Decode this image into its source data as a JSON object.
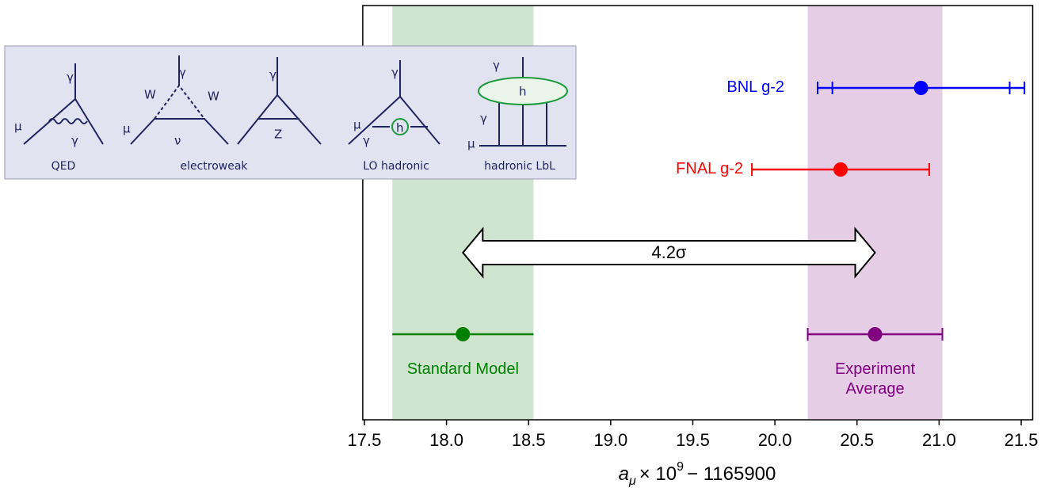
{
  "chart_data": {
    "type": "errorbar",
    "x_label": {
      "symbol": "a",
      "subscript": "μ",
      "factor": "× 10",
      "exponent": "9",
      "offset": "− 1165900"
    },
    "xlim": [
      17.49,
      21.57
    ],
    "xticks": [
      {
        "value": 17.5,
        "label": "17.5"
      },
      {
        "value": 18,
        "label": "18.0"
      },
      {
        "value": 18.5,
        "label": "18.5"
      },
      {
        "value": 19,
        "label": "19.0"
      },
      {
        "value": 19.5,
        "label": "19.5"
      },
      {
        "value": 20,
        "label": "20.0"
      },
      {
        "value": 20.5,
        "label": "20.5"
      },
      {
        "value": 21,
        "label": "21.0"
      },
      {
        "value": 21.5,
        "label": "21.5"
      }
    ],
    "series": [
      {
        "name": "BNL g-2",
        "color": "#0000ff",
        "value": 20.89,
        "error": 0.63,
        "stat_error": 0.54,
        "caps": true,
        "band": false
      },
      {
        "name": "FNAL g-2",
        "color": "#ff0000",
        "value": 20.4,
        "error": 0.54,
        "caps": true,
        "band": false
      },
      {
        "name": "Standard Model",
        "color": "#008000",
        "value": 18.1,
        "error": 0.43,
        "caps": false,
        "band": true,
        "band_color": "#cfe4cf"
      },
      {
        "name": "Experiment Average",
        "color": "#800080",
        "value": 20.61,
        "error": 0.41,
        "caps": true,
        "band": true,
        "band_color": "#e6cde6"
      }
    ],
    "annotation": "4.2σ",
    "inset": {
      "panels": [
        {
          "label": "QED",
          "symbols": [
            "γ",
            "μ",
            "γ"
          ]
        },
        {
          "label": "electroweak",
          "symbols": [
            "γ",
            "W",
            "W",
            "μ",
            "ν",
            "γ",
            "Z"
          ]
        },
        {
          "label": "LO hadronic",
          "symbols": [
            "γ",
            "μ",
            "h",
            "γ"
          ]
        },
        {
          "label": "hadronic LbL",
          "symbols": [
            "γ",
            "h",
            "γ",
            "μ"
          ]
        }
      ]
    }
  }
}
